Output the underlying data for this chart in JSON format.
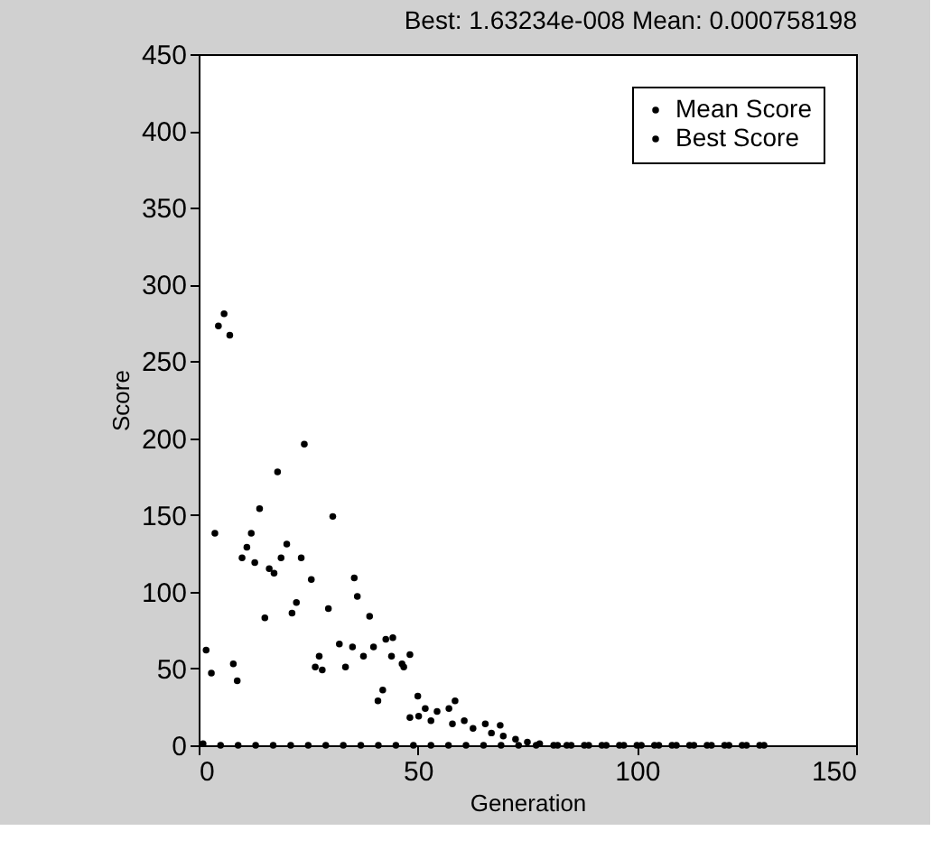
{
  "chart_data": {
    "type": "scatter",
    "title": "Best: 1.63234e-008 Mean: 0.000758198",
    "xlabel": "Generation",
    "ylabel": "Score",
    "xlim": [
      0,
      150
    ],
    "xticks": [
      0,
      50,
      100,
      150
    ],
    "ylim": [
      0,
      450
    ],
    "yticks": [
      0,
      50,
      100,
      150,
      200,
      250,
      300,
      350,
      400,
      450
    ],
    "grid": false,
    "legend": "top right",
    "marker": "circle",
    "series": [
      {
        "name": "Mean Score",
        "color": "#000000",
        "x": [
          5.8,
          4.5,
          7.1,
          24.1,
          18,
          13.9,
          30.6,
          3.7,
          12,
          20.1,
          11,
          9.9,
          12.8,
          18.8,
          23.4,
          16.1,
          17.2,
          25.7,
          35.5,
          36.2,
          22.3,
          29.6,
          21.3,
          15.1,
          39,
          1.7,
          2.9,
          7.9,
          8.8,
          27.5,
          26.6,
          28.2,
          33.5,
          32.1,
          35.1,
          37.6,
          39.9,
          42.7,
          44.3,
          44,
          46.4,
          42,
          40.9,
          48.2,
          46.8,
          50,
          58.5,
          51.7,
          54.4,
          57.1,
          50.2,
          53,
          57.9,
          60.6,
          62.6,
          65.4,
          68.8,
          66.8,
          69.5,
          72.3,
          75,
          77.8,
          81.9,
          48.2,
          84,
          88,
          92,
          96,
          100,
          104,
          108,
          112,
          116,
          120,
          124,
          128
        ],
        "values": [
          281,
          273,
          267,
          196,
          178,
          154,
          149,
          138,
          138,
          131,
          129,
          122,
          119,
          122,
          122,
          115,
          112,
          108,
          109,
          97,
          93,
          89,
          86,
          83,
          84,
          62,
          47,
          53,
          42,
          58,
          51,
          49,
          51,
          66,
          64,
          58,
          64,
          69,
          70,
          58,
          53,
          36,
          29,
          59,
          51,
          32,
          29,
          24,
          22,
          24,
          19,
          16,
          14,
          16,
          11,
          14,
          13,
          8,
          6,
          4,
          2,
          1,
          0,
          18,
          0,
          0,
          0,
          0,
          0,
          0,
          0,
          0,
          0,
          0,
          0,
          0
        ]
      },
      {
        "name": "Best Score",
        "color": "#000000",
        "x": [
          1,
          5,
          9,
          13,
          17,
          21,
          25,
          29,
          33,
          37,
          41,
          45,
          49,
          53,
          57,
          61,
          65,
          69,
          73,
          77,
          81,
          85,
          89,
          93,
          97,
          101,
          105,
          109,
          113,
          117,
          121,
          125,
          129
        ],
        "values": [
          1,
          0,
          0,
          0,
          0,
          0,
          0,
          0,
          0,
          0,
          0,
          0,
          0,
          0,
          0,
          0,
          0,
          0,
          0,
          0,
          0,
          0,
          0,
          0,
          0,
          0,
          0,
          0,
          0,
          0,
          0,
          0,
          0
        ]
      }
    ]
  }
}
